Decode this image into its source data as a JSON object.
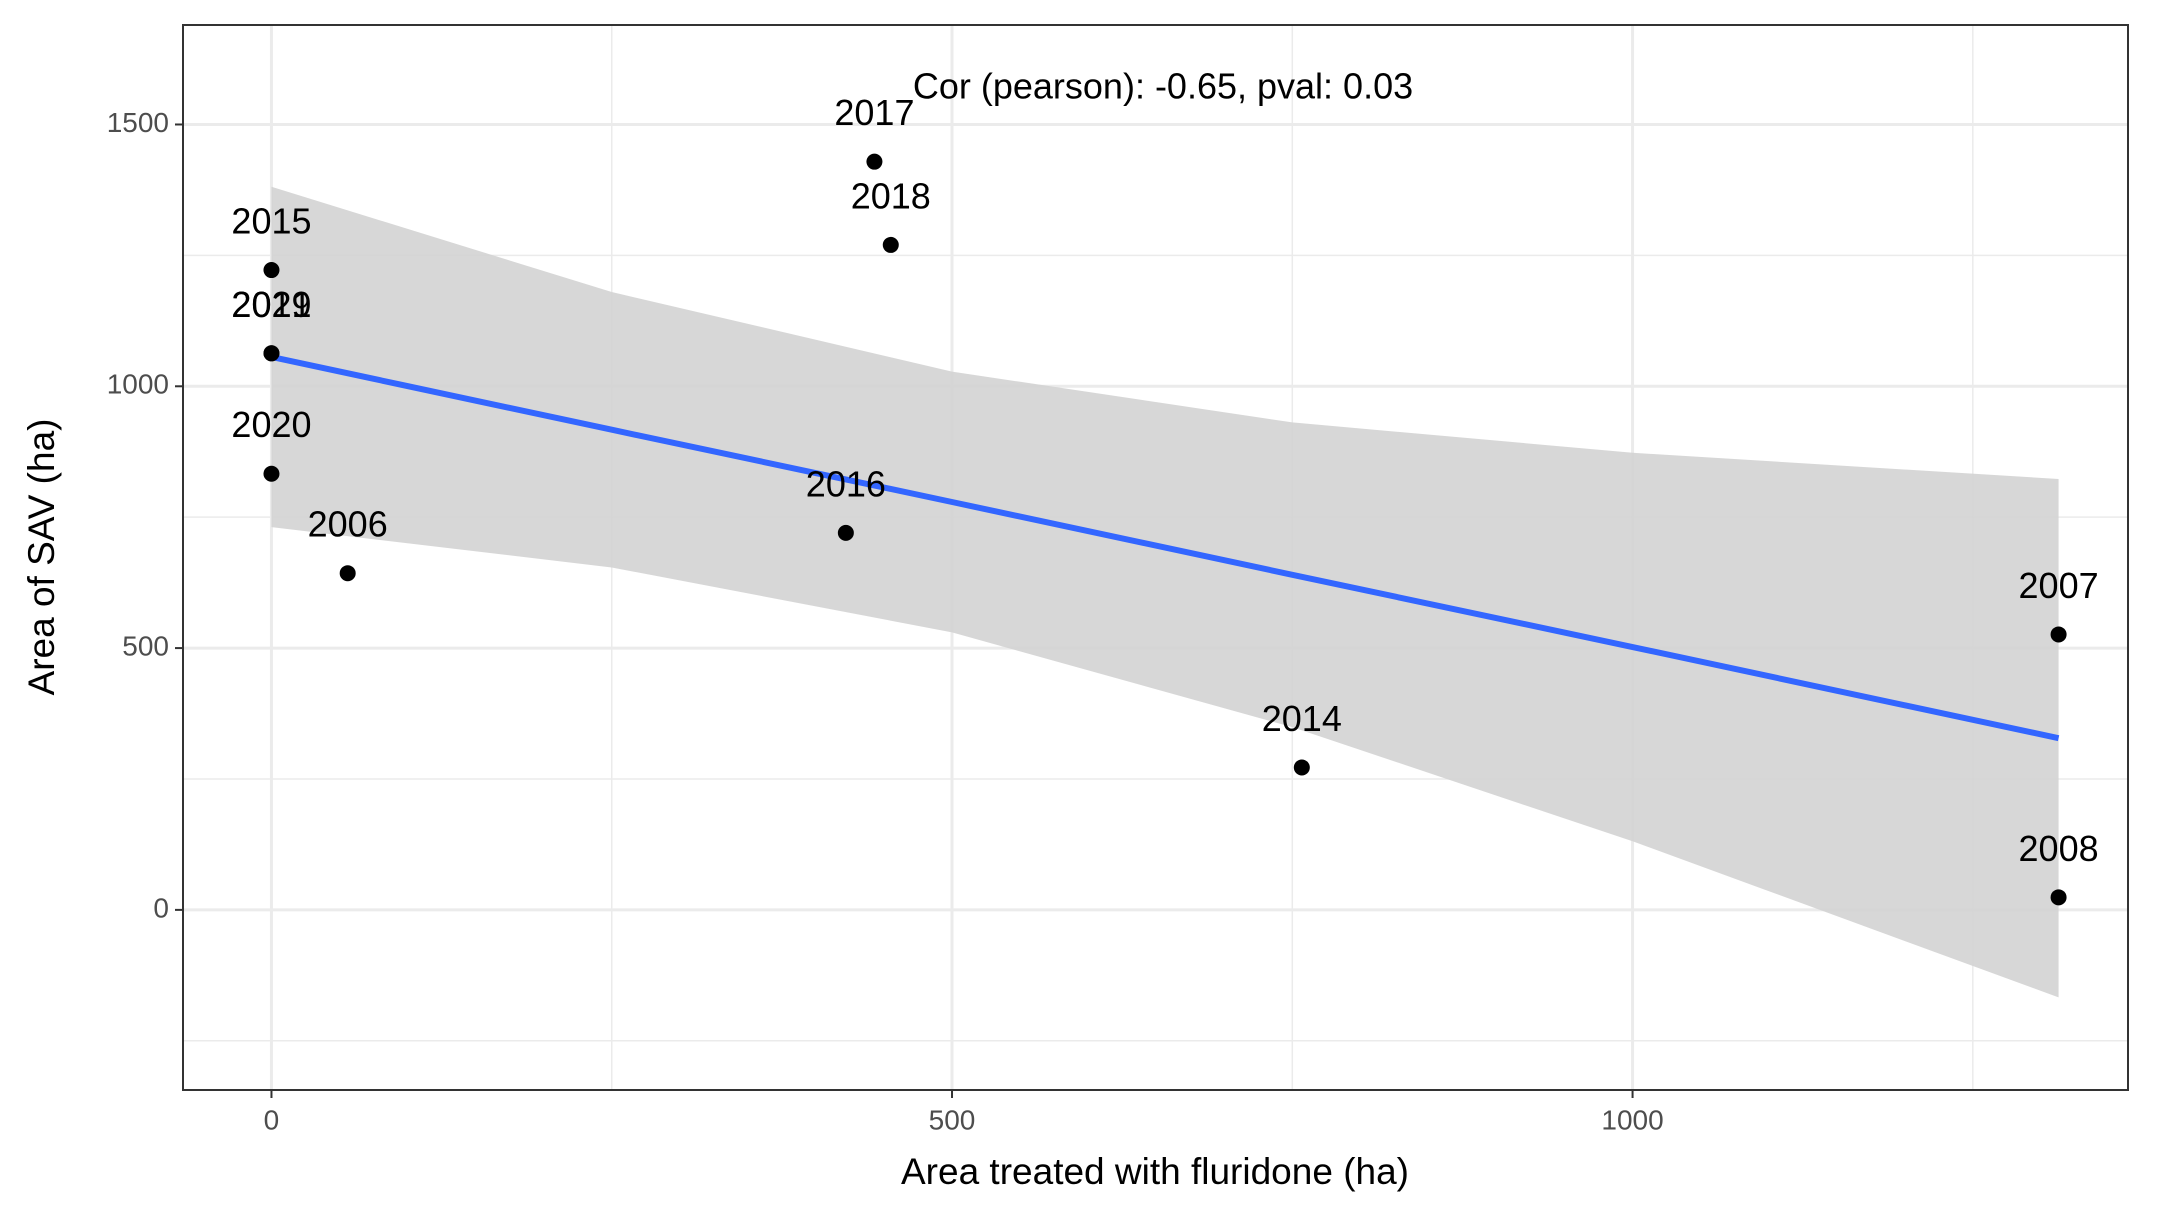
{
  "chart_data": {
    "type": "scatter",
    "xlabel": "Area treated with fluridone (ha)",
    "ylabel": "Area of SAV (ha)",
    "annotation": "Cor (pearson): -0.65, pval: 0.03",
    "labels": [
      "2015",
      "2019",
      "2021",
      "2020",
      "2006",
      "2017",
      "2018",
      "2016",
      "2014",
      "2007",
      "2008"
    ],
    "x": [
      0,
      0,
      0,
      0,
      56,
      443,
      455,
      422,
      757,
      1313,
      1313
    ],
    "y": [
      1222,
      1063,
      1063,
      833,
      643,
      1429,
      1270,
      720,
      272,
      526,
      24
    ],
    "color": "#000000",
    "fit": {
      "x": [
        0,
        250,
        500,
        750,
        1000,
        1313
      ],
      "y": [
        1056,
        917,
        779,
        640,
        502,
        328
      ],
      "upper": [
        1381,
        1180,
        1028,
        931,
        873,
        823
      ],
      "lower": [
        731,
        654,
        530,
        349,
        131,
        -167
      ],
      "color": "#3366ff",
      "band_color": "#d3d3d3"
    },
    "xlim": [
      -65,
      1364
    ],
    "ylim": [
      -344,
      1690
    ],
    "xticks": [
      0,
      500,
      1000
    ],
    "yticks": [
      0,
      500,
      1000,
      1500
    ],
    "xminor": [
      250,
      750,
      1250
    ],
    "yminor": [
      -250,
      250,
      750,
      1250
    ],
    "grid": true
  }
}
